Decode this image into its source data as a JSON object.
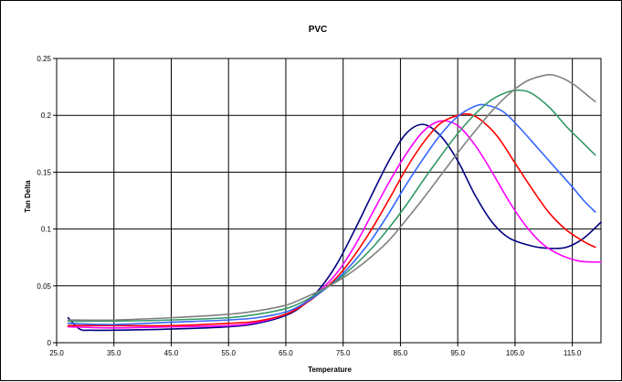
{
  "chart_data": {
    "type": "line",
    "title": "PVC",
    "xlabel": "Temperature",
    "ylabel": "Tan Delta",
    "xlim": [
      25.0,
      120.0
    ],
    "ylim": [
      0,
      0.25
    ],
    "x_ticks": [
      "25.0",
      "35.0",
      "45.0",
      "55.0",
      "65.0",
      "75.0",
      "85.0",
      "95.0",
      "105.0",
      "115.0"
    ],
    "y_ticks": [
      "0",
      "0.05",
      "0.1",
      "0.15",
      "0.2",
      "0.25"
    ],
    "grid": true,
    "legend": "none",
    "series": [
      {
        "color": "#000080",
        "points": [
          [
            27,
            0.022
          ],
          [
            29,
            0.012
          ],
          [
            31,
            0.011
          ],
          [
            35,
            0.011
          ],
          [
            45,
            0.012
          ],
          [
            55,
            0.014
          ],
          [
            60,
            0.017
          ],
          [
            65,
            0.024
          ],
          [
            68,
            0.033
          ],
          [
            71,
            0.048
          ],
          [
            74,
            0.07
          ],
          [
            77,
            0.099
          ],
          [
            80,
            0.13
          ],
          [
            83,
            0.16
          ],
          [
            86,
            0.184
          ],
          [
            89,
            0.192
          ],
          [
            92,
            0.182
          ],
          [
            95,
            0.16
          ],
          [
            98,
            0.13
          ],
          [
            101,
            0.106
          ],
          [
            104,
            0.092
          ],
          [
            108,
            0.085
          ],
          [
            111,
            0.083
          ],
          [
            114,
            0.084
          ],
          [
            117,
            0.092
          ],
          [
            120,
            0.106
          ]
        ]
      },
      {
        "color": "#ff00ff",
        "points": [
          [
            27,
            0.014
          ],
          [
            35,
            0.013
          ],
          [
            45,
            0.014
          ],
          [
            55,
            0.015
          ],
          [
            60,
            0.018
          ],
          [
            65,
            0.025
          ],
          [
            68,
            0.034
          ],
          [
            71,
            0.046
          ],
          [
            74,
            0.062
          ],
          [
            77,
            0.085
          ],
          [
            80,
            0.113
          ],
          [
            83,
            0.141
          ],
          [
            86,
            0.166
          ],
          [
            89,
            0.186
          ],
          [
            92,
            0.195
          ],
          [
            95,
            0.191
          ],
          [
            98,
            0.174
          ],
          [
            101,
            0.15
          ],
          [
            104,
            0.124
          ],
          [
            107,
            0.102
          ],
          [
            110,
            0.086
          ],
          [
            113,
            0.077
          ],
          [
            116,
            0.072
          ],
          [
            118,
            0.071
          ],
          [
            120,
            0.071
          ]
        ]
      },
      {
        "color": "#ff0000",
        "points": [
          [
            27,
            0.015
          ],
          [
            35,
            0.015
          ],
          [
            45,
            0.015
          ],
          [
            55,
            0.017
          ],
          [
            60,
            0.019
          ],
          [
            65,
            0.025
          ],
          [
            68,
            0.033
          ],
          [
            71,
            0.044
          ],
          [
            74,
            0.058
          ],
          [
            77,
            0.077
          ],
          [
            80,
            0.1
          ],
          [
            83,
            0.126
          ],
          [
            86,
            0.153
          ],
          [
            89,
            0.176
          ],
          [
            92,
            0.193
          ],
          [
            95,
            0.2
          ],
          [
            97,
            0.201
          ],
          [
            99,
            0.196
          ],
          [
            102,
            0.181
          ],
          [
            105,
            0.158
          ],
          [
            108,
            0.135
          ],
          [
            111,
            0.114
          ],
          [
            114,
            0.099
          ],
          [
            117,
            0.089
          ],
          [
            119,
            0.084
          ]
        ]
      },
      {
        "color": "#3366ff",
        "points": [
          [
            27,
            0.017
          ],
          [
            35,
            0.016
          ],
          [
            45,
            0.018
          ],
          [
            55,
            0.02
          ],
          [
            60,
            0.022
          ],
          [
            65,
            0.027
          ],
          [
            68,
            0.034
          ],
          [
            71,
            0.044
          ],
          [
            74,
            0.056
          ],
          [
            77,
            0.072
          ],
          [
            80,
            0.091
          ],
          [
            83,
            0.114
          ],
          [
            86,
            0.139
          ],
          [
            89,
            0.162
          ],
          [
            92,
            0.183
          ],
          [
            95,
            0.199
          ],
          [
            98,
            0.208
          ],
          [
            100,
            0.209
          ],
          [
            103,
            0.203
          ],
          [
            106,
            0.188
          ],
          [
            109,
            0.171
          ],
          [
            112,
            0.154
          ],
          [
            115,
            0.137
          ],
          [
            117,
            0.125
          ],
          [
            119,
            0.115
          ]
        ]
      },
      {
        "color": "#339966",
        "points": [
          [
            27,
            0.019
          ],
          [
            35,
            0.019
          ],
          [
            45,
            0.02
          ],
          [
            55,
            0.022
          ],
          [
            60,
            0.025
          ],
          [
            65,
            0.03
          ],
          [
            68,
            0.036
          ],
          [
            71,
            0.045
          ],
          [
            74,
            0.055
          ],
          [
            77,
            0.068
          ],
          [
            80,
            0.083
          ],
          [
            83,
            0.101
          ],
          [
            86,
            0.121
          ],
          [
            89,
            0.143
          ],
          [
            92,
            0.164
          ],
          [
            95,
            0.184
          ],
          [
            98,
            0.201
          ],
          [
            101,
            0.214
          ],
          [
            104,
            0.221
          ],
          [
            106,
            0.222
          ],
          [
            108,
            0.219
          ],
          [
            111,
            0.207
          ],
          [
            114,
            0.19
          ],
          [
            117,
            0.175
          ],
          [
            119,
            0.165
          ]
        ]
      },
      {
        "color": "#808080",
        "points": [
          [
            27,
            0.02
          ],
          [
            35,
            0.02
          ],
          [
            45,
            0.022
          ],
          [
            55,
            0.025
          ],
          [
            60,
            0.028
          ],
          [
            65,
            0.033
          ],
          [
            68,
            0.039
          ],
          [
            71,
            0.046
          ],
          [
            74,
            0.054
          ],
          [
            77,
            0.064
          ],
          [
            80,
            0.076
          ],
          [
            83,
            0.09
          ],
          [
            86,
            0.108
          ],
          [
            89,
            0.127
          ],
          [
            92,
            0.147
          ],
          [
            95,
            0.167
          ],
          [
            98,
            0.186
          ],
          [
            101,
            0.204
          ],
          [
            104,
            0.219
          ],
          [
            107,
            0.23
          ],
          [
            110,
            0.235
          ],
          [
            112,
            0.235
          ],
          [
            115,
            0.228
          ],
          [
            118,
            0.216
          ],
          [
            119,
            0.212
          ]
        ]
      }
    ]
  }
}
